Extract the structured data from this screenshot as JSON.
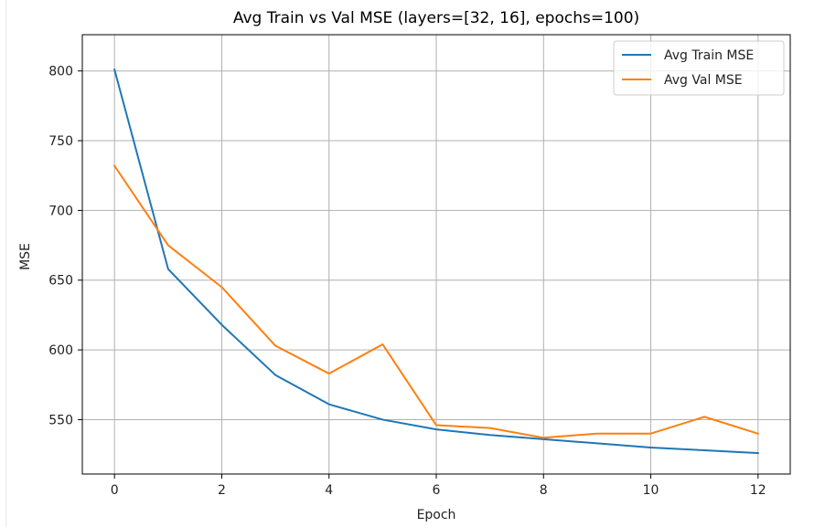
{
  "chart_data": {
    "type": "line",
    "title": "Avg Train vs Val MSE (layers=[32, 16], epochs=100)",
    "xlabel": "Epoch",
    "ylabel": "MSE",
    "x": [
      0,
      1,
      2,
      3,
      4,
      5,
      6,
      7,
      8,
      9,
      10,
      11,
      12
    ],
    "xlim": [
      -0.6,
      12.6
    ],
    "ylim": [
      511,
      826
    ],
    "xticks": [
      0,
      2,
      4,
      6,
      8,
      10,
      12
    ],
    "yticks": [
      550,
      600,
      650,
      700,
      750,
      800
    ],
    "grid": true,
    "legend_position": "top-right",
    "series": [
      {
        "name": "Avg Train MSE",
        "color": "#1f77b4",
        "values": [
          801,
          658,
          618,
          582,
          561,
          550,
          543,
          539,
          536,
          533,
          530,
          528,
          526
        ]
      },
      {
        "name": "Avg Val MSE",
        "color": "#ff7f0e",
        "values": [
          732,
          675,
          645,
          603,
          583,
          604,
          546,
          544,
          537,
          540,
          540,
          552,
          540
        ]
      }
    ]
  }
}
